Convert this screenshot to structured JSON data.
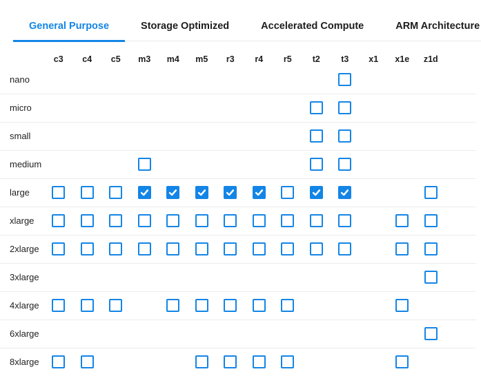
{
  "colors": {
    "accent": "#1385e6",
    "divider": "#ececec"
  },
  "tabs": [
    {
      "id": "general-purpose",
      "label": "General Purpose",
      "active": true
    },
    {
      "id": "storage-optimized",
      "label": "Storage Optimized",
      "active": false
    },
    {
      "id": "accelerated-compute",
      "label": "Accelerated Compute",
      "active": false
    },
    {
      "id": "arm-architecture",
      "label": "ARM Architecture",
      "active": false
    }
  ],
  "grid": {
    "columns": [
      "c3",
      "c4",
      "c5",
      "m3",
      "m4",
      "m5",
      "r3",
      "r4",
      "r5",
      "t2",
      "t3",
      "x1",
      "x1e",
      "z1d"
    ],
    "rows": [
      {
        "label": "nano",
        "cells": [
          null,
          null,
          null,
          null,
          null,
          null,
          null,
          null,
          null,
          null,
          "unchecked",
          null,
          null,
          null
        ]
      },
      {
        "label": "micro",
        "cells": [
          null,
          null,
          null,
          null,
          null,
          null,
          null,
          null,
          null,
          "unchecked",
          "unchecked",
          null,
          null,
          null
        ]
      },
      {
        "label": "small",
        "cells": [
          null,
          null,
          null,
          null,
          null,
          null,
          null,
          null,
          null,
          "unchecked",
          "unchecked",
          null,
          null,
          null
        ]
      },
      {
        "label": "medium",
        "cells": [
          null,
          null,
          null,
          "unchecked",
          null,
          null,
          null,
          null,
          null,
          "unchecked",
          "unchecked",
          null,
          null,
          null
        ]
      },
      {
        "label": "large",
        "cells": [
          "unchecked",
          "unchecked",
          "unchecked",
          "checked",
          "checked",
          "checked",
          "checked",
          "checked",
          "unchecked",
          "checked",
          "checked",
          null,
          null,
          "unchecked"
        ]
      },
      {
        "label": "xlarge",
        "cells": [
          "unchecked",
          "unchecked",
          "unchecked",
          "unchecked",
          "unchecked",
          "unchecked",
          "unchecked",
          "unchecked",
          "unchecked",
          "unchecked",
          "unchecked",
          null,
          "unchecked",
          "unchecked"
        ]
      },
      {
        "label": "2xlarge",
        "cells": [
          "unchecked",
          "unchecked",
          "unchecked",
          "unchecked",
          "unchecked",
          "unchecked",
          "unchecked",
          "unchecked",
          "unchecked",
          "unchecked",
          "unchecked",
          null,
          "unchecked",
          "unchecked"
        ]
      },
      {
        "label": "3xlarge",
        "cells": [
          null,
          null,
          null,
          null,
          null,
          null,
          null,
          null,
          null,
          null,
          null,
          null,
          null,
          "unchecked"
        ]
      },
      {
        "label": "4xlarge",
        "cells": [
          "unchecked",
          "unchecked",
          "unchecked",
          null,
          "unchecked",
          "unchecked",
          "unchecked",
          "unchecked",
          "unchecked",
          null,
          null,
          null,
          "unchecked",
          null
        ]
      },
      {
        "label": "6xlarge",
        "cells": [
          null,
          null,
          null,
          null,
          null,
          null,
          null,
          null,
          null,
          null,
          null,
          null,
          null,
          "unchecked"
        ]
      },
      {
        "label": "8xlarge",
        "cells": [
          "unchecked",
          "unchecked",
          null,
          null,
          null,
          "unchecked",
          "unchecked",
          "unchecked",
          "unchecked",
          null,
          null,
          null,
          "unchecked",
          null
        ]
      }
    ]
  }
}
